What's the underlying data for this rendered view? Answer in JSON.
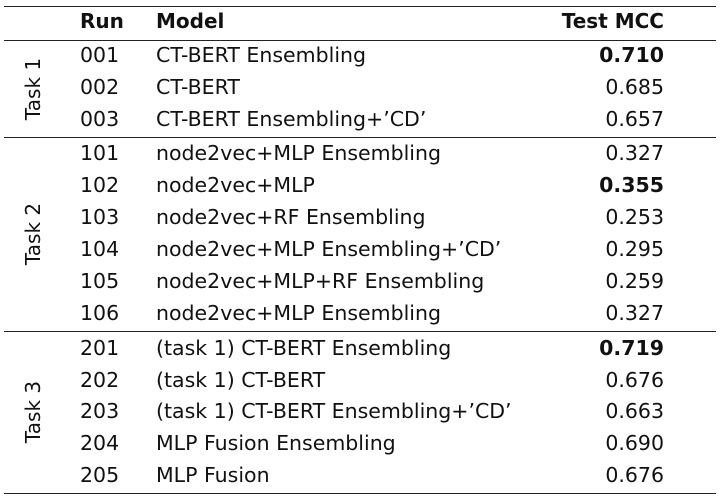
{
  "headers": {
    "run": "Run",
    "model": "Model",
    "mcc": "Test MCC"
  },
  "groups": [
    {
      "label": "Task 1",
      "rows": [
        {
          "run": "001",
          "model": "CT-BERT Ensembling",
          "mcc": "0.710",
          "best": true
        },
        {
          "run": "002",
          "model": "CT-BERT",
          "mcc": "0.685",
          "best": false
        },
        {
          "run": "003",
          "model": "CT-BERT Ensembling+’CD’",
          "mcc": "0.657",
          "best": false
        }
      ]
    },
    {
      "label": "Task 2",
      "rows": [
        {
          "run": "101",
          "model": "node2vec+MLP Ensembling",
          "mcc": "0.327",
          "best": false
        },
        {
          "run": "102",
          "model": "node2vec+MLP",
          "mcc": "0.355",
          "best": true
        },
        {
          "run": "103",
          "model": "node2vec+RF Ensembling",
          "mcc": "0.253",
          "best": false
        },
        {
          "run": "104",
          "model": "node2vec+MLP Ensembling+’CD’",
          "mcc": "0.295",
          "best": false
        },
        {
          "run": "105",
          "model": "node2vec+MLP+RF Ensembling",
          "mcc": "0.259",
          "best": false
        },
        {
          "run": "106",
          "model": "node2vec+MLP Ensembling",
          "mcc": "0.327",
          "best": false
        }
      ]
    },
    {
      "label": "Task 3",
      "rows": [
        {
          "run": "201",
          "model": "(task 1) CT-BERT Ensembling",
          "mcc": "0.719",
          "best": true
        },
        {
          "run": "202",
          "model": "(task 1) CT-BERT",
          "mcc": "0.676",
          "best": false
        },
        {
          "run": "203",
          "model": "(task 1) CT-BERT Ensembling+’CD’",
          "mcc": "0.663",
          "best": false
        },
        {
          "run": "204",
          "model": "MLP Fusion Ensembling",
          "mcc": "0.690",
          "best": false
        },
        {
          "run": "205",
          "model": "MLP Fusion",
          "mcc": "0.676",
          "best": false
        }
      ]
    }
  ]
}
